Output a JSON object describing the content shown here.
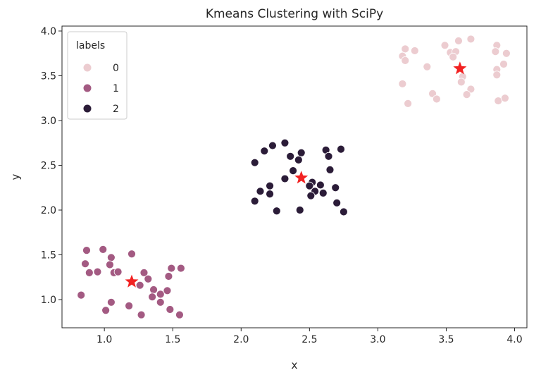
{
  "chart_data": {
    "type": "scatter",
    "title": "Kmeans Clustering with SciPy",
    "xlabel": "x",
    "ylabel": "y",
    "xlim": [
      0.69,
      4.09
    ],
    "ylim": [
      0.685,
      4.055
    ],
    "xticks": [
      "1.0",
      "1.5",
      "2.0",
      "2.5",
      "3.0",
      "3.5",
      "4.0"
    ],
    "yticks": [
      "1.0",
      "1.5",
      "2.0",
      "2.5",
      "3.0",
      "3.5",
      "4.0"
    ],
    "grid": false,
    "legend": {
      "title": "labels",
      "placement": "top-left"
    },
    "series": [
      {
        "name": "0",
        "color": "#ecccd0",
        "points": [
          [
            3.2,
            3.8
          ],
          [
            3.27,
            3.78
          ],
          [
            3.18,
            3.72
          ],
          [
            3.2,
            3.67
          ],
          [
            3.36,
            3.6
          ],
          [
            3.49,
            3.84
          ],
          [
            3.59,
            3.89
          ],
          [
            3.68,
            3.91
          ],
          [
            3.53,
            3.76
          ],
          [
            3.57,
            3.77
          ],
          [
            3.55,
            3.71
          ],
          [
            3.87,
            3.84
          ],
          [
            3.86,
            3.77
          ],
          [
            3.94,
            3.75
          ],
          [
            3.92,
            3.63
          ],
          [
            3.87,
            3.57
          ],
          [
            3.87,
            3.51
          ],
          [
            3.62,
            3.49
          ],
          [
            3.61,
            3.43
          ],
          [
            3.18,
            3.41
          ],
          [
            3.68,
            3.35
          ],
          [
            3.65,
            3.29
          ],
          [
            3.4,
            3.3
          ],
          [
            3.43,
            3.24
          ],
          [
            3.22,
            3.19
          ],
          [
            3.88,
            3.22
          ],
          [
            3.93,
            3.25
          ]
        ]
      },
      {
        "name": "1",
        "color": "#a35a82",
        "points": [
          [
            0.87,
            1.55
          ],
          [
            0.99,
            1.56
          ],
          [
            1.2,
            1.51
          ],
          [
            1.05,
            1.47
          ],
          [
            0.86,
            1.4
          ],
          [
            1.04,
            1.39
          ],
          [
            0.89,
            1.3
          ],
          [
            0.95,
            1.31
          ],
          [
            1.07,
            1.3
          ],
          [
            1.1,
            1.31
          ],
          [
            1.29,
            1.3
          ],
          [
            1.32,
            1.23
          ],
          [
            1.49,
            1.35
          ],
          [
            1.56,
            1.35
          ],
          [
            1.47,
            1.26
          ],
          [
            1.26,
            1.16
          ],
          [
            1.36,
            1.11
          ],
          [
            1.46,
            1.1
          ],
          [
            1.41,
            1.06
          ],
          [
            1.35,
            1.03
          ],
          [
            1.41,
            0.97
          ],
          [
            0.83,
            1.05
          ],
          [
            1.05,
            0.97
          ],
          [
            1.18,
            0.93
          ],
          [
            1.01,
            0.88
          ],
          [
            1.48,
            0.89
          ],
          [
            1.27,
            0.83
          ],
          [
            1.55,
            0.83
          ]
        ]
      },
      {
        "name": "2",
        "color": "#2b1c38",
        "points": [
          [
            2.23,
            2.72
          ],
          [
            2.32,
            2.75
          ],
          [
            2.17,
            2.66
          ],
          [
            2.1,
            2.53
          ],
          [
            2.36,
            2.6
          ],
          [
            2.44,
            2.64
          ],
          [
            2.42,
            2.56
          ],
          [
            2.62,
            2.67
          ],
          [
            2.64,
            2.6
          ],
          [
            2.73,
            2.68
          ],
          [
            2.38,
            2.44
          ],
          [
            2.65,
            2.45
          ],
          [
            2.32,
            2.35
          ],
          [
            2.21,
            2.27
          ],
          [
            2.14,
            2.21
          ],
          [
            2.21,
            2.18
          ],
          [
            2.1,
            2.1
          ],
          [
            2.52,
            2.31
          ],
          [
            2.5,
            2.27
          ],
          [
            2.58,
            2.28
          ],
          [
            2.54,
            2.21
          ],
          [
            2.6,
            2.19
          ],
          [
            2.51,
            2.16
          ],
          [
            2.69,
            2.25
          ],
          [
            2.7,
            2.08
          ],
          [
            2.26,
            1.99
          ],
          [
            2.43,
            2.0
          ],
          [
            2.75,
            1.98
          ]
        ]
      }
    ],
    "centroids": {
      "color": "#f22222",
      "marker": "star",
      "points": [
        [
          3.6,
          3.58
        ],
        [
          1.2,
          1.2
        ],
        [
          2.44,
          2.36
        ]
      ]
    }
  }
}
